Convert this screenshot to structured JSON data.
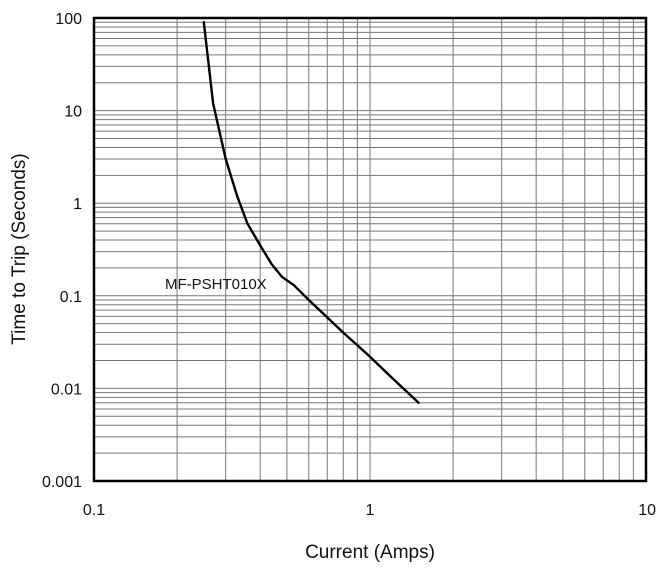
{
  "chart_data": {
    "type": "line",
    "xlabel": "Current (Amps)",
    "ylabel": "Time to Trip (Seconds)",
    "x_scale": "log",
    "y_scale": "log",
    "xlim": [
      0.1,
      10
    ],
    "ylim": [
      0.001,
      100
    ],
    "x_ticks": [
      "0.1",
      "1",
      "10"
    ],
    "y_ticks": [
      "100",
      "10",
      "1",
      "0.1",
      "0.01",
      "0.001"
    ],
    "grid": true,
    "series": [
      {
        "name": "MF-PSHT010X",
        "x": [
          0.25,
          0.27,
          0.3,
          0.33,
          0.36,
          0.4,
          0.44,
          0.48,
          0.53,
          0.6,
          0.8,
          1.0,
          1.2,
          1.5
        ],
        "y": [
          90,
          12,
          3.0,
          1.2,
          0.6,
          0.35,
          0.22,
          0.16,
          0.13,
          0.09,
          0.04,
          0.022,
          0.013,
          0.007
        ]
      }
    ],
    "annotations": [
      {
        "text": "MF-PSHT010X"
      }
    ]
  }
}
